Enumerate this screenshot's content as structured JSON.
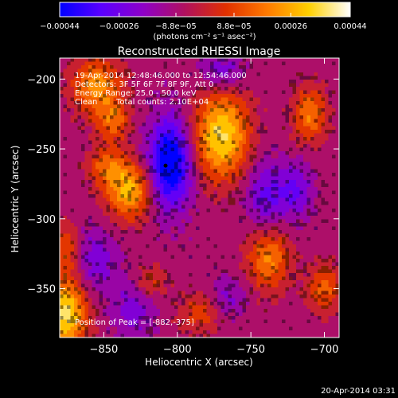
{
  "chart_data": {
    "type": "heatmap",
    "title": "Reconstructed RHESSI Image",
    "xlabel": "Heliocentric X (arcsec)",
    "ylabel": "Heliocentric Y (arcsec)",
    "xlim": [
      -880,
      -690
    ],
    "ylim": [
      -385,
      -185
    ],
    "x_ticks": [
      -850,
      -800,
      -750,
      -700
    ],
    "x_tick_labels": [
      "−850",
      "−800",
      "−750",
      "−700"
    ],
    "y_ticks": [
      -200,
      -250,
      -300,
      -350
    ],
    "y_tick_labels": [
      "−200",
      "−250",
      "−300",
      "−350"
    ],
    "colorbar": {
      "range": [
        -0.00044,
        0.00044
      ],
      "ticks": [
        -0.00044,
        -0.00026,
        -8.8e-05,
        8.8e-05,
        0.00026,
        0.00044
      ],
      "tick_labels": [
        "−0.00044",
        "−0.00026",
        "−8.8e−05",
        "8.8e−05",
        "0.00026",
        "0.00044"
      ],
      "unit_text": "(photons cm⁻² s⁻¹ asec⁻²)",
      "colors": [
        "#0000ff",
        "#5a00ff",
        "#8e00c8",
        "#b01060",
        "#e03000",
        "#ff7a00",
        "#ffd000",
        "#ffffff"
      ]
    },
    "peak": {
      "x": -882,
      "y": -375,
      "marker_x": -808,
      "marker_y": -262
    },
    "blobs": [
      {
        "x": -855,
        "y": -205,
        "amp": 0.0003,
        "sx": 12,
        "sy": 14
      },
      {
        "x": -844,
        "y": -230,
        "amp": 0.00022,
        "sx": 8,
        "sy": 10
      },
      {
        "x": -770,
        "y": -240,
        "amp": 0.00042,
        "sx": 13,
        "sy": 22
      },
      {
        "x": -710,
        "y": -225,
        "amp": 0.00026,
        "sx": 8,
        "sy": 14
      },
      {
        "x": -833,
        "y": -280,
        "amp": 0.00036,
        "sx": 11,
        "sy": 14
      },
      {
        "x": -848,
        "y": -262,
        "amp": 0.0002,
        "sx": 9,
        "sy": 10
      },
      {
        "x": -738,
        "y": -328,
        "amp": 0.00028,
        "sx": 10,
        "sy": 16
      },
      {
        "x": -700,
        "y": -350,
        "amp": 0.00022,
        "sx": 8,
        "sy": 12
      },
      {
        "x": -876,
        "y": -368,
        "amp": 0.00044,
        "sx": 10,
        "sy": 18
      },
      {
        "x": -875,
        "y": -320,
        "amp": 0.00018,
        "sx": 6,
        "sy": 12
      },
      {
        "x": -785,
        "y": -368,
        "amp": 0.00016,
        "sx": 10,
        "sy": 10
      },
      {
        "x": -818,
        "y": -345,
        "amp": 0.00014,
        "sx": 8,
        "sy": 8
      },
      {
        "x": -805,
        "y": -260,
        "amp": -0.00044,
        "sx": 10,
        "sy": 22
      },
      {
        "x": -740,
        "y": -285,
        "amp": -0.0002,
        "sx": 9,
        "sy": 18
      },
      {
        "x": -855,
        "y": -330,
        "amp": -0.00016,
        "sx": 10,
        "sy": 16
      },
      {
        "x": -720,
        "y": -280,
        "amp": -0.00018,
        "sx": 8,
        "sy": 14
      },
      {
        "x": -770,
        "y": -195,
        "amp": -0.00018,
        "sx": 10,
        "sy": 10
      },
      {
        "x": -830,
        "y": -365,
        "amp": -0.00015,
        "sx": 10,
        "sy": 14
      },
      {
        "x": -765,
        "y": -355,
        "amp": -0.00012,
        "sx": 8,
        "sy": 10
      }
    ]
  },
  "overlay": {
    "time_line": "19-Apr-2014 12:48:46.000 to 12:54:46.000",
    "detectors_line": "Detectors: 3F 5F 6F 7F 8F 9F, Att 0",
    "energy_line": "Energy Range: 25.0 - 50.0 keV",
    "method": "Clean",
    "counts": "Total counts: 2.10E+04",
    "peak_text": "Position of Peak = [-882,-375]"
  },
  "footer": {
    "timestamp": "20-Apr-2014 03:31"
  }
}
